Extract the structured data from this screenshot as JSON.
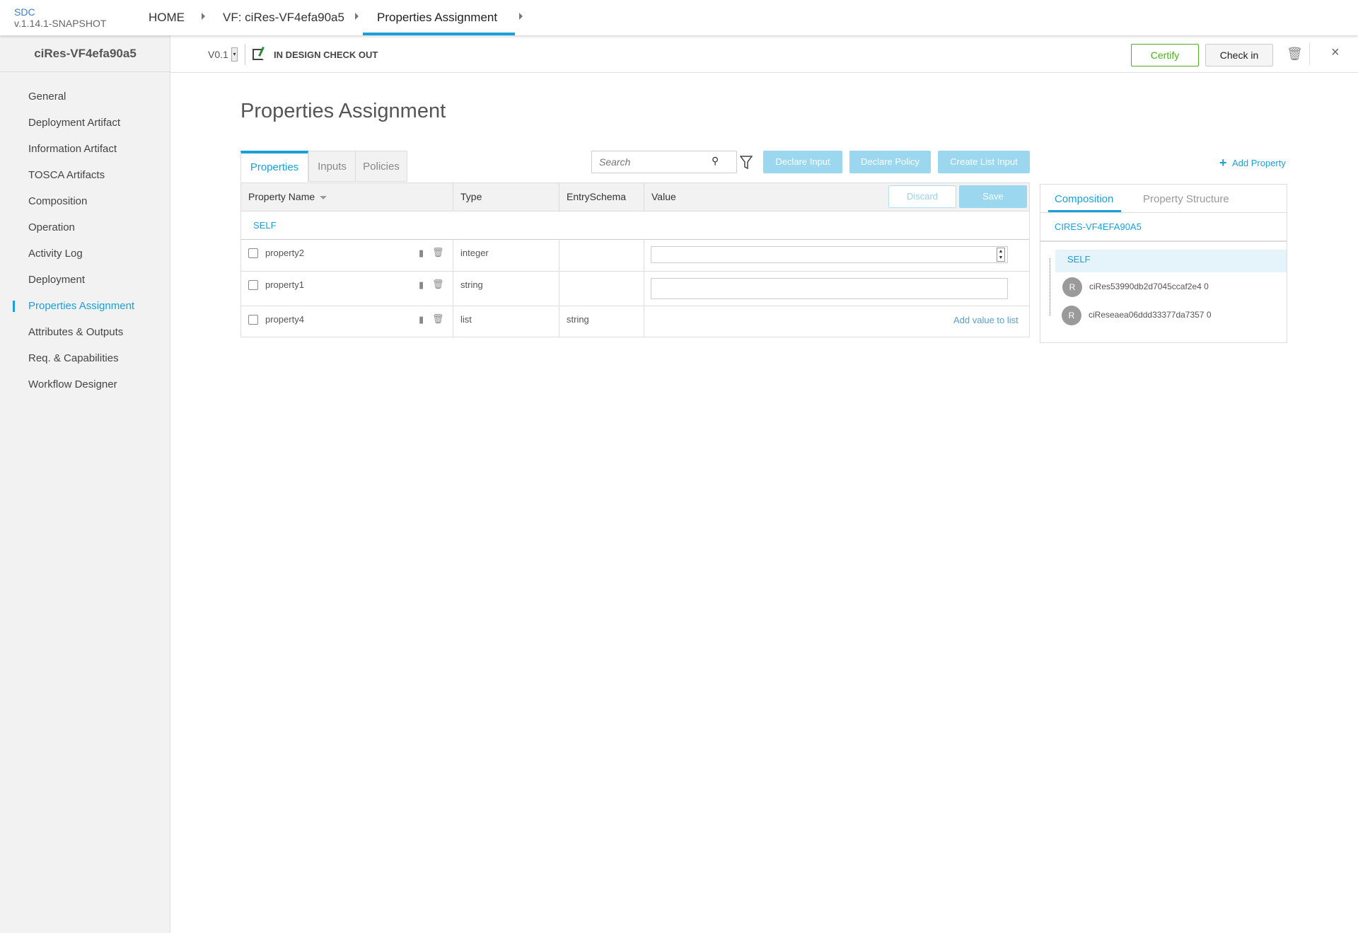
{
  "header": {
    "brand": "SDC",
    "version": "v.1.14.1-SNAPSHOT",
    "breadcrumbs": [
      "HOME",
      "VF: ciRes-VF4efa90a5",
      "Properties Assignment"
    ],
    "accent": "#1a9fd9"
  },
  "sidebar": {
    "title": "ciRes-VF4efa90a5",
    "items": [
      {
        "label": "General"
      },
      {
        "label": "Deployment Artifact"
      },
      {
        "label": "Information Artifact"
      },
      {
        "label": "TOSCA Artifacts"
      },
      {
        "label": "Composition"
      },
      {
        "label": "Operation"
      },
      {
        "label": "Activity Log"
      },
      {
        "label": "Deployment"
      },
      {
        "label": "Properties Assignment",
        "active": true
      },
      {
        "label": "Attributes & Outputs"
      },
      {
        "label": "Req. & Capabilities"
      },
      {
        "label": "Workflow Designer"
      }
    ]
  },
  "subbar": {
    "version": "V0.1",
    "status": "IN DESIGN CHECK OUT",
    "certify": "Certify",
    "checkin": "Check in"
  },
  "main": {
    "title": "Properties Assignment",
    "tabs": [
      "Properties",
      "Inputs",
      "Policies"
    ],
    "search_placeholder": "Search",
    "buttons": {
      "declare_input": "Declare Input",
      "declare_policy": "Declare Policy",
      "create_list_input": "Create List Input",
      "add_property": "Add Property",
      "discard": "Discard",
      "save": "Save"
    },
    "table": {
      "columns": [
        "Property Name",
        "Type",
        "EntrySchema",
        "Value"
      ],
      "group": "SELF",
      "rows": [
        {
          "name": "property2",
          "type": "integer",
          "entry_schema": "",
          "value": ""
        },
        {
          "name": "property1",
          "type": "string",
          "entry_schema": "",
          "value": ""
        },
        {
          "name": "property4",
          "type": "list",
          "entry_schema": "string",
          "value_link": "Add value to list"
        }
      ]
    }
  },
  "panel": {
    "tabs": [
      "Composition",
      "Property Structure"
    ],
    "root": "CIRES-VF4EFA90A5",
    "self": "SELF",
    "instances": [
      {
        "avatar": "R",
        "name": "ciRes53990db2d7045ccaf2e4 0"
      },
      {
        "avatar": "R",
        "name": "ciReseaea06ddd33377da7357 0"
      }
    ]
  }
}
